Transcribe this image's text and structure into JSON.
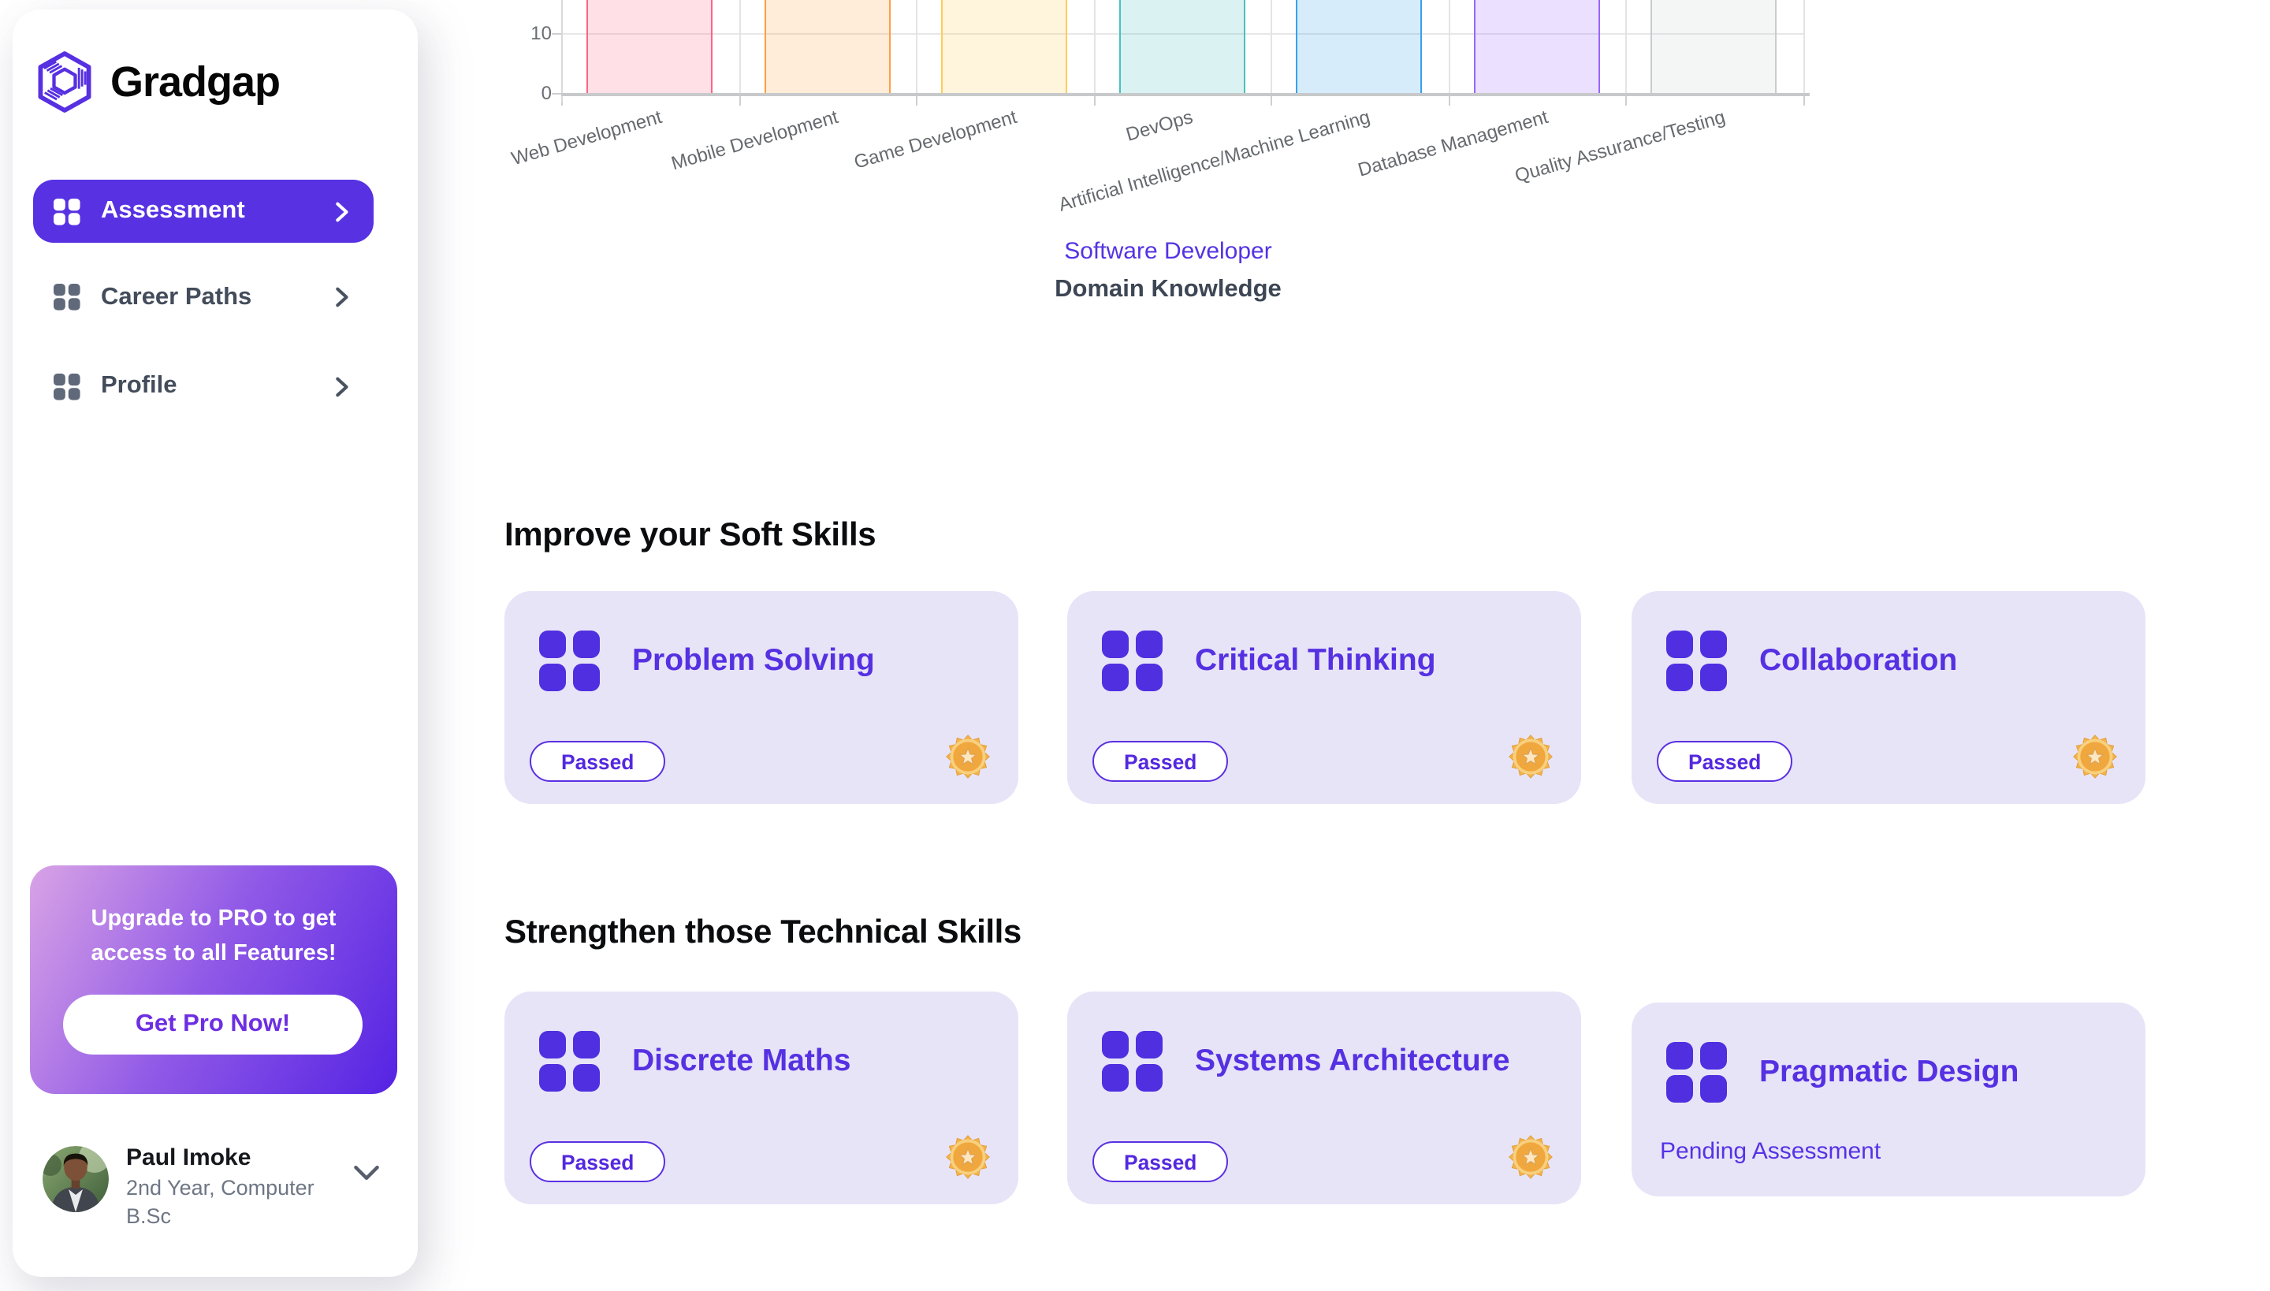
{
  "sidebar": {
    "logo_text": "Gradgap",
    "nav": [
      {
        "label": "Assessment",
        "active": true
      },
      {
        "label": "Career Paths",
        "active": false
      },
      {
        "label": "Profile",
        "active": false
      }
    ],
    "pro_card": {
      "message": "Upgrade to PRO to get access to all Features!",
      "button_label": "Get Pro Now!"
    },
    "user": {
      "name": "Paul Imoke",
      "detail": "2nd Year, Computer B.Sc"
    }
  },
  "chart_data": {
    "type": "bar",
    "title": "Domain Knowledge",
    "legend": [
      "Software Developer"
    ],
    "legend_position": "bottom",
    "categories": [
      "Web Development",
      "Mobile Development",
      "Game Development",
      "DevOps",
      "Artificial Intelligence/Machine Learning",
      "Database Management",
      "Quality Assurance/Testing"
    ],
    "series": [
      {
        "name": "Software Developer",
        "values": [
          null,
          null,
          null,
          null,
          null,
          null,
          null
        ],
        "note": "bar tops are cut off above the visible viewport; only the 0 to ~16 range of each bar is shown"
      }
    ],
    "xlabel": "",
    "ylabel": "",
    "y_ticks": [
      10,
      0
    ],
    "ylim_visible": [
      0,
      16
    ],
    "grid": true,
    "bar_styles": [
      {
        "category": "Web Development",
        "border": "rgb(255,99,132)",
        "fill": "rgba(255,99,132,0.2)"
      },
      {
        "category": "Mobile Development",
        "border": "rgb(255,159,64)",
        "fill": "rgba(255,159,64,0.2)"
      },
      {
        "category": "Game Development",
        "border": "rgb(255,205,86)",
        "fill": "rgba(255,205,86,0.2)"
      },
      {
        "category": "DevOps",
        "border": "rgb(75,192,192)",
        "fill": "rgba(75,192,192,0.2)"
      },
      {
        "category": "Artificial Intelligence/Machine Learning",
        "border": "rgb(54,162,235)",
        "fill": "rgba(54,162,235,0.2)"
      },
      {
        "category": "Database Management",
        "border": "rgb(153,102,255)",
        "fill": "rgba(153,102,255,0.2)"
      },
      {
        "category": "Quality Assurance/Testing",
        "border": "rgb(201,203,207)",
        "fill": "rgba(201,203,207,0.2)"
      }
    ]
  },
  "sections": [
    {
      "heading": "Improve your Soft Skills",
      "cards": [
        {
          "title": "Problem Solving",
          "status": "Passed",
          "status_type": "passed",
          "medal": true
        },
        {
          "title": "Critical Thinking",
          "status": "Passed",
          "status_type": "passed",
          "medal": true
        },
        {
          "title": "Collaboration",
          "status": "Passed",
          "status_type": "passed",
          "medal": true
        }
      ]
    },
    {
      "heading": "Strengthen those Technical Skills",
      "cards": [
        {
          "title": "Discrete Maths",
          "status": "Passed",
          "status_type": "passed",
          "medal": true
        },
        {
          "title": "Systems Architecture",
          "status": "Passed",
          "status_type": "passed",
          "medal": true
        },
        {
          "title": "Pragmatic Design",
          "status": "Pending Assessment",
          "status_type": "pending",
          "medal": false
        }
      ]
    }
  ],
  "colors": {
    "accent_purple": "#5731E2",
    "card_background": "#E8E4F8",
    "card_title_purple": "#5531E2",
    "pill_border_purple": "#5A30E2",
    "pro_gradient_start": "#D9A3E6",
    "pro_gradient_end": "#5523E3",
    "medal_gold": "#F2B34C",
    "legend_text_purple": "#5433E3",
    "chart_title_slate": "#3D4654"
  }
}
